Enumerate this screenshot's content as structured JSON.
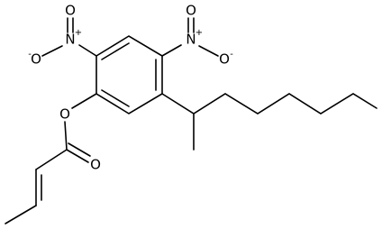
{
  "nodes": [
    {
      "label": "O"
    },
    {
      "label": "N",
      "charge": "+"
    },
    {
      "label": "O",
      "charge": "-"
    },
    {
      "label": "O"
    },
    {
      "label": "N",
      "charge": "+"
    },
    {
      "label": "O",
      "charge": "-"
    },
    {
      "label": "O"
    },
    {
      "label": "O"
    }
  ]
}
